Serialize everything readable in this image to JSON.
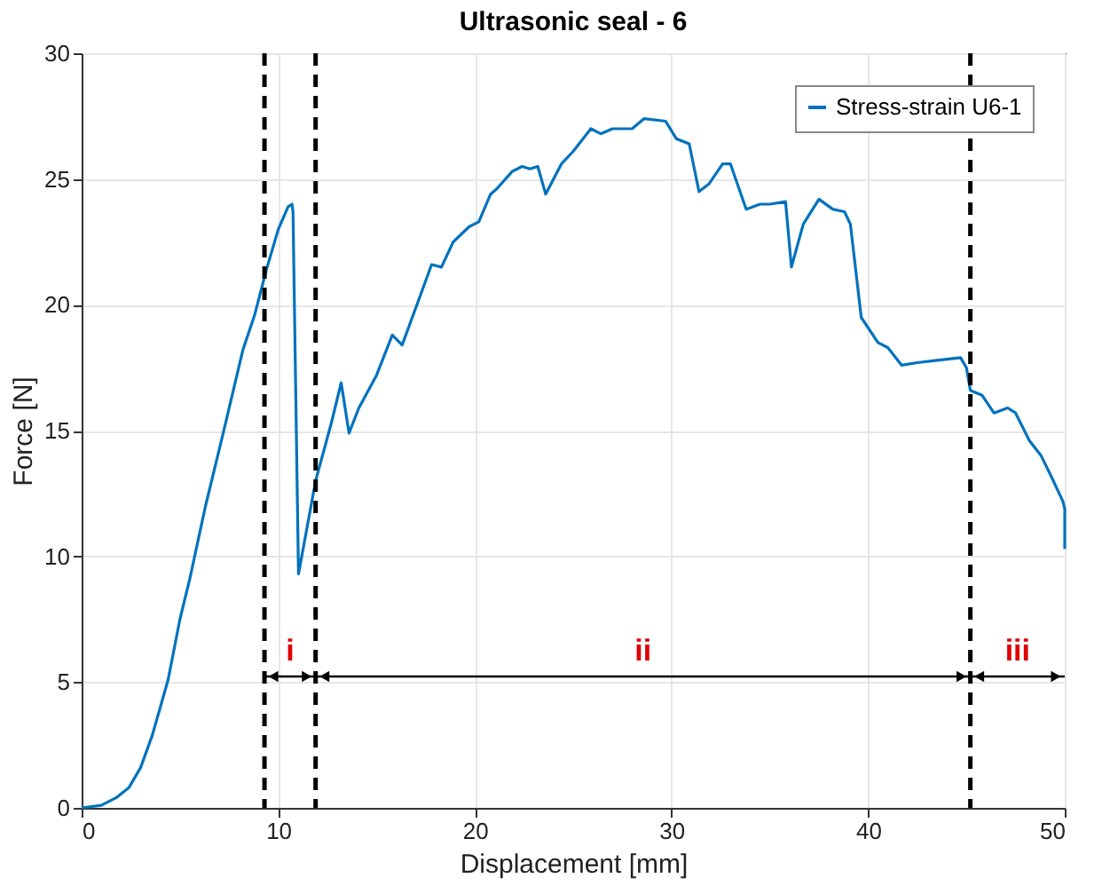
{
  "chart_data": {
    "type": "line",
    "title": "Ultrasonic seal - 6",
    "xlabel": "Displacement [mm]",
    "ylabel": "Force [N]",
    "xlim": [
      0,
      50
    ],
    "xticks": [
      0,
      10,
      20,
      30,
      40,
      50
    ],
    "ylim": [
      0,
      30
    ],
    "yticks": [
      0,
      5,
      10,
      15,
      20,
      25,
      30
    ],
    "grid": true,
    "legend": "top right",
    "line_style": "solid",
    "marker": "none",
    "series": [
      {
        "name": "Stress-strain U6-1",
        "color": "#0072bd",
        "x": [
          0,
          1,
          1.75,
          2.4,
          3.0,
          3.6,
          4.4,
          5.0,
          5.5,
          6.3,
          7.2,
          8.2,
          8.8,
          9.4,
          10.0,
          10.5,
          10.7,
          10.75,
          11.03,
          11.9,
          12.7,
          13.2,
          13.6,
          14.1,
          15.0,
          15.8,
          16.3,
          17.1,
          17.8,
          18.3,
          18.9,
          19.7,
          20.2,
          20.8,
          21.1,
          21.9,
          22.4,
          22.8,
          23.2,
          23.6,
          24.4,
          25.0,
          25.9,
          26.4,
          27.0,
          28.0,
          28.6,
          29.7,
          30.25,
          30.9,
          31.4,
          31.9,
          32.6,
          33.0,
          33.8,
          34.5,
          35.0,
          35.8,
          36.1,
          36.7,
          37.5,
          38.2,
          38.8,
          39.1,
          39.65,
          40.5,
          41.0,
          41.7,
          42.5,
          43.6,
          44.7,
          45.0,
          45.2,
          45.8,
          46.4,
          47.1,
          47.5,
          48.2,
          48.8,
          49.3,
          49.9,
          50,
          50
        ],
        "values": [
          0,
          0.1,
          0.4,
          0.8,
          1.6,
          2.9,
          5.1,
          7.5,
          9.1,
          12.0,
          14.9,
          18.2,
          19.6,
          21.4,
          23.0,
          23.9,
          24.0,
          23.7,
          9.3,
          13.0,
          15.3,
          16.9,
          14.9,
          15.9,
          17.2,
          18.8,
          18.4,
          20.1,
          21.6,
          21.5,
          22.5,
          23.1,
          23.3,
          24.4,
          24.6,
          25.3,
          25.5,
          25.4,
          25.5,
          24.4,
          25.6,
          26.1,
          27.0,
          26.8,
          27.0,
          27.0,
          27.4,
          27.3,
          26.6,
          26.4,
          24.5,
          24.8,
          25.6,
          25.6,
          23.8,
          24.0,
          24.0,
          24.1,
          21.5,
          23.2,
          24.2,
          23.8,
          23.7,
          23.2,
          19.5,
          18.5,
          18.3,
          17.6,
          17.7,
          17.8,
          17.9,
          17.5,
          16.6,
          16.4,
          15.7,
          15.9,
          15.7,
          14.6,
          14.0,
          13.2,
          12.2,
          11.9,
          10.3
        ]
      }
    ],
    "ref_lines": [
      {
        "axis": "x",
        "value": 9.3,
        "color": "#000000",
        "line_style": "dashed"
      },
      {
        "axis": "x",
        "value": 11.9,
        "color": "#000000",
        "line_style": "dashed"
      },
      {
        "axis": "x",
        "value": 45.2,
        "color": "#000000",
        "line_style": "dashed"
      }
    ],
    "annotations": [
      "i",
      "ii",
      "iii"
    ]
  }
}
